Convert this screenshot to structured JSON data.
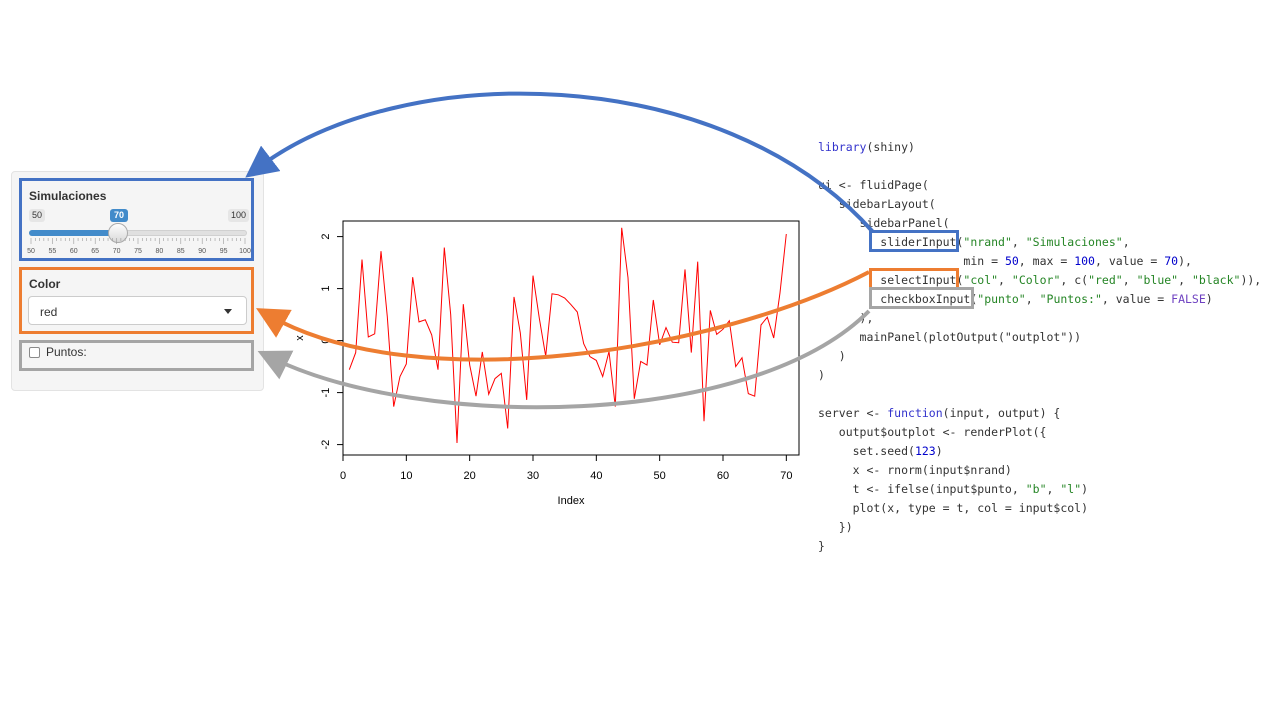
{
  "sidebar": {
    "slider": {
      "label": "Simulaciones",
      "min_label": "50",
      "max_label": "100",
      "value_label": "70",
      "value": 70,
      "min": 50,
      "max": 100,
      "tick_labels": [
        "50",
        "55",
        "60",
        "65",
        "70",
        "75",
        "80",
        "85",
        "90",
        "95",
        "100"
      ]
    },
    "select": {
      "label": "Color",
      "value": "red"
    },
    "checkbox": {
      "label": "Puntos:",
      "checked": false
    }
  },
  "chart_data": {
    "type": "line",
    "xlabel": "Index",
    "ylabel": "x",
    "xlim": [
      0,
      72
    ],
    "ylim": [
      -2.2,
      2.3
    ],
    "xticks": [
      "0",
      "10",
      "20",
      "30",
      "40",
      "50",
      "60",
      "70"
    ],
    "yticks": [
      "-2",
      "-1",
      "0",
      "1",
      "2"
    ],
    "series_color": "#ff0000",
    "x": [
      1,
      2,
      3,
      4,
      5,
      6,
      7,
      8,
      9,
      10,
      11,
      12,
      13,
      14,
      15,
      16,
      17,
      18,
      19,
      20,
      21,
      22,
      23,
      24,
      25,
      26,
      27,
      28,
      29,
      30,
      31,
      32,
      33,
      34,
      35,
      36,
      37,
      38,
      39,
      40,
      41,
      42,
      43,
      44,
      45,
      46,
      47,
      48,
      49,
      50,
      51,
      52,
      53,
      54,
      55,
      56,
      57,
      58,
      59,
      60,
      61,
      62,
      63,
      64,
      65,
      66,
      67,
      68,
      69,
      70
    ],
    "y": [
      -0.56,
      -0.23,
      1.56,
      0.07,
      0.13,
      1.72,
      0.46,
      -1.27,
      -0.69,
      -0.45,
      1.22,
      0.36,
      0.4,
      0.11,
      -0.56,
      1.79,
      0.5,
      -1.97,
      0.7,
      -0.47,
      -1.07,
      -0.22,
      -1.03,
      -0.73,
      -0.63,
      -1.69,
      0.84,
      0.15,
      -1.14,
      1.25,
      0.43,
      -0.3,
      0.9,
      0.88,
      0.82,
      0.69,
      0.55,
      -0.06,
      -0.31,
      -0.38,
      -0.69,
      -0.21,
      -1.27,
      2.17,
      1.21,
      -1.12,
      -0.4,
      -0.47,
      0.78,
      -0.08,
      0.25,
      -0.03,
      -0.04,
      1.37,
      -0.23,
      1.52,
      -1.55,
      0.58,
      0.12,
      0.22,
      0.38,
      -0.5,
      -0.33,
      -1.02,
      -1.07,
      0.3,
      0.45,
      0.05,
      0.92,
      2.05
    ]
  },
  "code": {
    "l1_fn": "library",
    "l1_rest": "(shiny)",
    "l2": "ui <- fluidPage(",
    "l3": "   sidebarLayout(",
    "l4": "      sidebarPanel(",
    "l5_fn": "         sliderInput",
    "l5_s1": "\"nrand\"",
    "l5_sep": ", ",
    "l5_s2": "\"Simulaciones\"",
    "l5_end": ",",
    "l6_a": "                     min = ",
    "l6_n1": "50",
    "l6_b": ", max = ",
    "l6_n2": "100",
    "l6_c": ", value = ",
    "l6_n3": "70",
    "l6_d": "),",
    "l7_fn": "         selectInput",
    "l7_rest_a": "(",
    "l7_s1": "\"col\"",
    "l7_rest_b": ", ",
    "l7_s2": "\"Color\"",
    "l7_rest_c": ", c(",
    "l7_s3": "\"red\"",
    "l7_rest_d": ", ",
    "l7_s4": "\"blue\"",
    "l7_rest_e": ", ",
    "l7_s5": "\"black\"",
    "l7_rest_f": ")),",
    "l8_fn": "         checkboxInput",
    "l8_rest_a": "(",
    "l8_s1": "\"punto\"",
    "l8_rest_b": ", ",
    "l8_s2": "\"Puntos:\"",
    "l8_rest_c": ", value = ",
    "l8_lit": "FALSE",
    "l8_rest_d": ")",
    "l9": "      ),",
    "l10": "      mainPanel(plotOutput(\"outplot\"))",
    "l11": "   )",
    "l12": ")",
    "l14_a": "server <- ",
    "l14_kw": "function",
    "l14_b": "(input, output) {",
    "l15": "   output$outplot <- renderPlot({",
    "l16_a": "     set.seed(",
    "l16_n": "123",
    "l16_b": ")",
    "l17": "     x <- rnorm(input$nrand)",
    "l18_a": "     t <- ifelse(input$punto, ",
    "l18_s1": "\"b\"",
    "l18_b": ", ",
    "l18_s2": "\"l\"",
    "l18_c": ")",
    "l19_a": "     plot(x, type = t, col = input$col)",
    "l20": "   })",
    "l21": "}"
  },
  "colors": {
    "blue_highlight": "#4472c4",
    "orange_highlight": "#ed7d31",
    "gray_highlight": "#a5a5a5",
    "slider_accent": "#428bca"
  }
}
